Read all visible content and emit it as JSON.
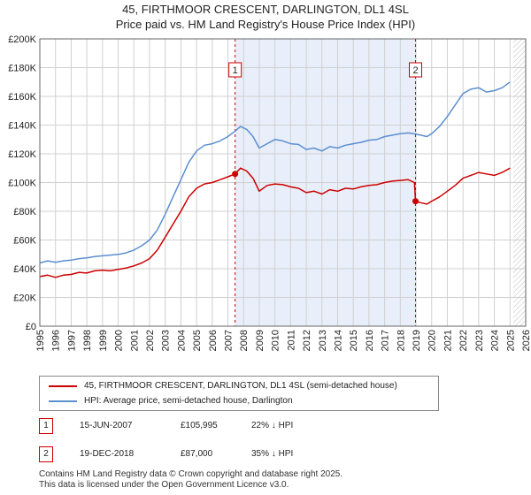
{
  "chart_data": {
    "type": "line",
    "title": "45, FIRTHMOOR CRESCENT, DARLINGTON, DL1 4SL",
    "subtitle": "Price paid vs. HM Land Registry's House Price Index (HPI)",
    "xlabel": "",
    "ylabel": "",
    "xlim": [
      1995,
      2026
    ],
    "ylim": [
      0,
      200000
    ],
    "x_ticks": [
      1995,
      1996,
      1997,
      1998,
      1999,
      2000,
      2001,
      2002,
      2003,
      2004,
      2005,
      2006,
      2007,
      2008,
      2009,
      2010,
      2011,
      2012,
      2013,
      2014,
      2015,
      2016,
      2017,
      2018,
      2019,
      2020,
      2021,
      2022,
      2023,
      2024,
      2025,
      2026
    ],
    "y_ticks": [
      0,
      20000,
      40000,
      60000,
      80000,
      100000,
      120000,
      140000,
      160000,
      180000,
      200000
    ],
    "y_tick_labels": [
      "£0",
      "£20K",
      "£40K",
      "£60K",
      "£80K",
      "£100K",
      "£120K",
      "£140K",
      "£160K",
      "£180K",
      "£200K"
    ],
    "grid": true,
    "shaded_region": {
      "from": 2007.46,
      "to": 2018.97,
      "color": "#e8eefa"
    },
    "hatched_future_from": 2025.2,
    "series": [
      {
        "name": "45, FIRTHMOOR CRESCENT, DARLINGTON, DL1 4SL (semi-detached house)",
        "color": "#cc0000",
        "x": [
          1995.0,
          1995.5,
          1996.0,
          1996.5,
          1997.0,
          1997.5,
          1998.0,
          1998.5,
          1999.0,
          1999.5,
          2000.0,
          2000.5,
          2001.0,
          2001.5,
          2002.0,
          2002.5,
          2003.0,
          2003.5,
          2004.0,
          2004.5,
          2005.0,
          2005.5,
          2006.0,
          2006.5,
          2007.0,
          2007.46,
          2007.8,
          2008.2,
          2008.6,
          2009.0,
          2009.5,
          2010.0,
          2010.5,
          2011.0,
          2011.5,
          2012.0,
          2012.5,
          2013.0,
          2013.5,
          2014.0,
          2014.5,
          2015.0,
          2015.5,
          2016.0,
          2016.5,
          2017.0,
          2017.5,
          2018.0,
          2018.5,
          2018.9,
          2018.97,
          2019.3,
          2019.7,
          2020.0,
          2020.5,
          2021.0,
          2021.5,
          2022.0,
          2022.5,
          2023.0,
          2023.5,
          2024.0,
          2024.5,
          2025.0
        ],
        "values": [
          34500,
          35500,
          34000,
          35500,
          36000,
          37500,
          37000,
          38500,
          39000,
          38500,
          39500,
          40500,
          42000,
          44000,
          47000,
          53000,
          62000,
          71000,
          80000,
          90000,
          96000,
          99000,
          100000,
          102000,
          104000,
          105995,
          110000,
          108000,
          103000,
          94000,
          98000,
          99000,
          98500,
          97000,
          96000,
          93000,
          94000,
          92000,
          95000,
          94000,
          96000,
          95500,
          97000,
          98000,
          98500,
          100000,
          101000,
          101500,
          102000,
          100000,
          87000,
          86000,
          85000,
          87000,
          90000,
          94000,
          98000,
          103000,
          105000,
          107000,
          106000,
          105000,
          107000,
          110000
        ]
      },
      {
        "name": "HPI: Average price, semi-detached house, Darlington",
        "color": "#5b8fd0",
        "x": [
          1995.0,
          1995.5,
          1996.0,
          1996.5,
          1997.0,
          1997.5,
          1998.0,
          1998.5,
          1999.0,
          1999.5,
          2000.0,
          2000.5,
          2001.0,
          2001.5,
          2002.0,
          2002.5,
          2003.0,
          2003.5,
          2004.0,
          2004.5,
          2005.0,
          2005.5,
          2006.0,
          2006.5,
          2007.0,
          2007.46,
          2007.8,
          2008.2,
          2008.6,
          2009.0,
          2009.5,
          2010.0,
          2010.5,
          2011.0,
          2011.5,
          2012.0,
          2012.5,
          2013.0,
          2013.5,
          2014.0,
          2014.5,
          2015.0,
          2015.5,
          2016.0,
          2016.5,
          2017.0,
          2017.5,
          2018.0,
          2018.5,
          2018.97,
          2019.3,
          2019.7,
          2020.0,
          2020.5,
          2021.0,
          2021.5,
          2022.0,
          2022.5,
          2023.0,
          2023.5,
          2024.0,
          2024.5,
          2025.0
        ],
        "values": [
          44000,
          45500,
          44500,
          45500,
          46000,
          47000,
          47500,
          48500,
          49000,
          49500,
          50000,
          51000,
          53000,
          56000,
          60000,
          67000,
          78000,
          90000,
          102000,
          114000,
          122000,
          126000,
          127000,
          129000,
          132000,
          135800,
          139000,
          137000,
          132000,
          124000,
          127000,
          130000,
          129000,
          127000,
          126500,
          123000,
          124000,
          122000,
          125000,
          124000,
          126000,
          127000,
          128000,
          129500,
          130000,
          132000,
          133000,
          134000,
          134500,
          133800,
          133000,
          132000,
          134000,
          139000,
          146000,
          154000,
          162000,
          165000,
          166000,
          163000,
          164000,
          166000,
          170000
        ]
      }
    ],
    "annotations": [
      {
        "label": "1",
        "x": 2007.46,
        "y": 105995,
        "date": "15-JUN-2007",
        "price": "£105,995",
        "hpi": "22% ↓ HPI"
      },
      {
        "label": "2",
        "x": 2018.97,
        "y": 87000,
        "date": "19-DEC-2018",
        "price": "£87,000",
        "hpi": "35% ↓ HPI"
      }
    ]
  },
  "footer": {
    "line1": "Contains HM Land Registry data © Crown copyright and database right 2025.",
    "line2": "This data is licensed under the Open Government Licence v3.0."
  }
}
